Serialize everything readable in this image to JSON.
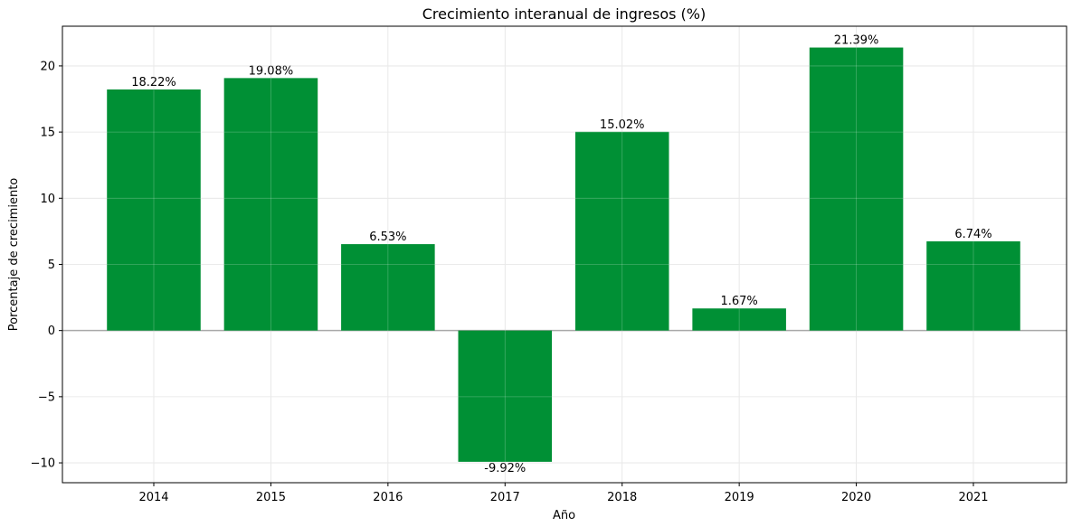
{
  "chart_data": {
    "type": "bar",
    "title": "Crecimiento interanual de ingresos (%)",
    "xlabel": "Año",
    "ylabel": "Porcentaje de crecimiento",
    "categories": [
      "2014",
      "2015",
      "2016",
      "2017",
      "2018",
      "2019",
      "2020",
      "2021"
    ],
    "values": [
      18.22,
      19.08,
      6.53,
      -9.92,
      15.02,
      1.67,
      21.39,
      6.74
    ],
    "data_labels": [
      "18.22%",
      "19.08%",
      "6.53%",
      "-9.92%",
      "15.02%",
      "1.67%",
      "21.39%",
      "6.74%"
    ],
    "ylim": [
      -11.5,
      23.0
    ],
    "yticks": [
      -10,
      -5,
      0,
      5,
      10,
      15,
      20
    ],
    "ytick_labels": [
      "−10",
      "−5",
      "0",
      "5",
      "10",
      "15",
      "20"
    ],
    "grid": true,
    "zero_line": true,
    "colors": {
      "bar": "#009035",
      "grid": "#dddddd",
      "zero_line": "#a8a8a8",
      "axis": "#000000"
    }
  }
}
